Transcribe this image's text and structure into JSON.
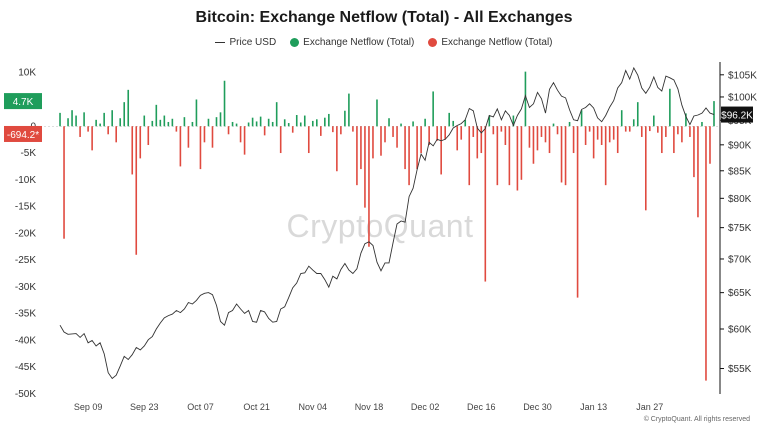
{
  "title": "Bitcoin: Exchange Netflow (Total) - All Exchanges",
  "legend": [
    {
      "label": "Price USD",
      "kind": "line",
      "color": "#333333"
    },
    {
      "label": "Exchange Netflow (Total)",
      "kind": "dot",
      "color": "#1f9d5b"
    },
    {
      "label": "Exchange Netflow (Total)",
      "kind": "dot",
      "color": "#e04a3f"
    }
  ],
  "watermark": "CryptoQuant",
  "copyright": "© CryptoQuant. All rights reserved",
  "colors": {
    "inflow_negative": "#e04a3f",
    "outflow_positive": "#1f9d5b",
    "price": "#333333"
  },
  "chart_data": {
    "type": "bar+line",
    "title": "Bitcoin: Exchange Netflow (Total) - All Exchanges",
    "left_axis": {
      "ylim": [
        -50000,
        12000
      ],
      "ticks": [
        10000,
        5000,
        0,
        -5000,
        -10000,
        -15000,
        -20000,
        -25000,
        -30000,
        -35000,
        -40000,
        -45000,
        -50000
      ],
      "tick_labels": [
        "10K",
        "5K",
        "0",
        "-5K",
        "-10K",
        "-15K",
        "-20K",
        "-25K",
        "-30K",
        "-35K",
        "-40K",
        "-45K",
        "-50K"
      ]
    },
    "right_axis": {
      "scale": "log",
      "ylim": [
        52000,
        108000
      ],
      "ticks": [
        105000,
        100000,
        95000,
        90000,
        85000,
        80000,
        75000,
        70000,
        65000,
        60000,
        55000
      ],
      "tick_labels": [
        "$105K",
        "$100K",
        "$95K",
        "$90K",
        "$85K",
        "$80K",
        "$75K",
        "$70K",
        "$65K",
        "$60K",
        "$55K"
      ]
    },
    "x_ticks": [
      "Sep 09",
      "Sep 23",
      "Oct 07",
      "Oct 21",
      "Nov 04",
      "Nov 18",
      "Dec 02",
      "Dec 16",
      "Dec 30",
      "Jan 13",
      "Jan 27"
    ],
    "x_tick_days": [
      9,
      23,
      37,
      51,
      65,
      79,
      93,
      107,
      121,
      135,
      149
    ],
    "x_range_days": [
      0,
      165
    ],
    "current_values": {
      "netflow_positive": "4.7K",
      "netflow_negative": "-694.2*",
      "price": "$96.2K"
    },
    "netflow": [
      [
        2,
        2500
      ],
      [
        3,
        -21000
      ],
      [
        4,
        1500
      ],
      [
        5,
        3000
      ],
      [
        6,
        2000
      ],
      [
        7,
        -2000
      ],
      [
        8,
        2600
      ],
      [
        9,
        -1000
      ],
      [
        10,
        -4500
      ],
      [
        11,
        1200
      ],
      [
        12,
        500
      ],
      [
        13,
        2500
      ],
      [
        14,
        -1500
      ],
      [
        15,
        3000
      ],
      [
        16,
        -3000
      ],
      [
        17,
        1500
      ],
      [
        18,
        4500
      ],
      [
        19,
        6800
      ],
      [
        20,
        -9000
      ],
      [
        21,
        -24000
      ],
      [
        22,
        -6000
      ],
      [
        23,
        2000
      ],
      [
        24,
        -3500
      ],
      [
        25,
        1000
      ],
      [
        26,
        4000
      ],
      [
        27,
        1200
      ],
      [
        28,
        2000
      ],
      [
        29,
        800
      ],
      [
        30,
        1400
      ],
      [
        31,
        -1000
      ],
      [
        32,
        -7500
      ],
      [
        33,
        1700
      ],
      [
        34,
        -4000
      ],
      [
        35,
        800
      ],
      [
        36,
        5000
      ],
      [
        37,
        -8000
      ],
      [
        38,
        -3000
      ],
      [
        39,
        1400
      ],
      [
        40,
        -4000
      ],
      [
        41,
        1700
      ],
      [
        42,
        2600
      ],
      [
        43,
        8500
      ],
      [
        44,
        -1500
      ],
      [
        45,
        800
      ],
      [
        46,
        500
      ],
      [
        47,
        -3000
      ],
      [
        48,
        -5300
      ],
      [
        49,
        700
      ],
      [
        50,
        1600
      ],
      [
        51,
        900
      ],
      [
        52,
        1800
      ],
      [
        53,
        -1700
      ],
      [
        54,
        1400
      ],
      [
        55,
        800
      ],
      [
        56,
        4500
      ],
      [
        57,
        -5000
      ],
      [
        58,
        1300
      ],
      [
        59,
        600
      ],
      [
        60,
        -1200
      ],
      [
        61,
        2100
      ],
      [
        62,
        700
      ],
      [
        63,
        2000
      ],
      [
        64,
        -5000
      ],
      [
        65,
        1000
      ],
      [
        66,
        1300
      ],
      [
        67,
        -1800
      ],
      [
        68,
        1600
      ],
      [
        69,
        2300
      ],
      [
        70,
        -1100
      ],
      [
        71,
        -8400
      ],
      [
        72,
        -1500
      ],
      [
        73,
        2900
      ],
      [
        74,
        6100
      ],
      [
        75,
        -1000
      ],
      [
        76,
        -11000
      ],
      [
        77,
        -8000
      ],
      [
        78,
        -15200
      ],
      [
        79,
        -22500
      ],
      [
        80,
        -6000
      ],
      [
        81,
        5000
      ],
      [
        82,
        -5500
      ],
      [
        83,
        -3000
      ],
      [
        84,
        1500
      ],
      [
        85,
        -2000
      ],
      [
        86,
        -4000
      ],
      [
        87,
        500
      ],
      [
        88,
        -8000
      ],
      [
        89,
        -11000
      ],
      [
        90,
        900
      ],
      [
        91,
        -8000
      ],
      [
        92,
        -5000
      ],
      [
        93,
        1400
      ],
      [
        94,
        -3500
      ],
      [
        95,
        6500
      ],
      [
        96,
        -2700
      ],
      [
        97,
        -9000
      ],
      [
        98,
        -2500
      ],
      [
        99,
        2500
      ],
      [
        100,
        1000
      ],
      [
        101,
        -4500
      ],
      [
        102,
        -2500
      ],
      [
        103,
        1200
      ],
      [
        104,
        -11000
      ],
      [
        105,
        -2000
      ],
      [
        106,
        -6000
      ],
      [
        107,
        -5000
      ],
      [
        108,
        -29000
      ],
      [
        109,
        2000
      ],
      [
        110,
        -1500
      ],
      [
        111,
        -11000
      ],
      [
        112,
        -1000
      ],
      [
        113,
        -3500
      ],
      [
        114,
        -11000
      ],
      [
        115,
        2000
      ],
      [
        116,
        -12000
      ],
      [
        117,
        -10000
      ],
      [
        118,
        10200
      ],
      [
        119,
        -4000
      ],
      [
        120,
        -7000
      ],
      [
        121,
        -4500
      ],
      [
        122,
        -2000
      ],
      [
        123,
        -3000
      ],
      [
        124,
        -5000
      ],
      [
        125,
        500
      ],
      [
        126,
        -1500
      ],
      [
        127,
        -10500
      ],
      [
        128,
        -11000
      ],
      [
        129,
        800
      ],
      [
        130,
        -5000
      ],
      [
        131,
        -32000
      ],
      [
        132,
        3000
      ],
      [
        133,
        -3500
      ],
      [
        134,
        -1000
      ],
      [
        135,
        -6000
      ],
      [
        136,
        -2500
      ],
      [
        137,
        -3500
      ],
      [
        138,
        -11000
      ],
      [
        139,
        -3000
      ],
      [
        140,
        -2500
      ],
      [
        141,
        -5000
      ],
      [
        142,
        3000
      ],
      [
        143,
        -1000
      ],
      [
        144,
        -1000
      ],
      [
        145,
        1300
      ],
      [
        146,
        4500
      ],
      [
        147,
        -2000
      ],
      [
        148,
        -15700
      ],
      [
        149,
        -900
      ],
      [
        150,
        2000
      ],
      [
        151,
        -1200
      ],
      [
        152,
        -5000
      ],
      [
        153,
        -2000
      ],
      [
        154,
        7000
      ],
      [
        155,
        -5000
      ],
      [
        156,
        -1500
      ],
      [
        157,
        -3000
      ],
      [
        158,
        2400
      ],
      [
        159,
        -2000
      ],
      [
        160,
        -9500
      ],
      [
        161,
        -17000
      ],
      [
        162,
        800
      ],
      [
        163,
        -47500
      ],
      [
        164,
        -7000
      ],
      [
        165,
        4700
      ]
    ],
    "price": [
      [
        2,
        60500
      ],
      [
        3,
        59600
      ],
      [
        4,
        59300
      ],
      [
        6,
        59400
      ],
      [
        7,
        58900
      ],
      [
        8,
        59400
      ],
      [
        9,
        58200
      ],
      [
        10,
        58500
      ],
      [
        11,
        57800
      ],
      [
        12,
        58200
      ],
      [
        13,
        56800
      ],
      [
        14,
        54500
      ],
      [
        15,
        53800
      ],
      [
        16,
        54200
      ],
      [
        17,
        55300
      ],
      [
        18,
        56500
      ],
      [
        19,
        56100
      ],
      [
        20,
        56700
      ],
      [
        21,
        57600
      ],
      [
        22,
        57300
      ],
      [
        23,
        57800
      ],
      [
        24,
        58600
      ],
      [
        25,
        59000
      ],
      [
        26,
        60000
      ],
      [
        27,
        60800
      ],
      [
        28,
        61500
      ],
      [
        29,
        61800
      ],
      [
        30,
        62000
      ],
      [
        31,
        62500
      ],
      [
        32,
        62200
      ],
      [
        33,
        62700
      ],
      [
        34,
        63600
      ],
      [
        35,
        63400
      ],
      [
        36,
        63900
      ],
      [
        37,
        64600
      ],
      [
        38,
        64900
      ],
      [
        39,
        65000
      ],
      [
        40,
        64700
      ],
      [
        41,
        63200
      ],
      [
        42,
        61000
      ],
      [
        43,
        60500
      ],
      [
        44,
        62200
      ],
      [
        45,
        62500
      ],
      [
        46,
        63400
      ],
      [
        47,
        62700
      ],
      [
        48,
        62100
      ],
      [
        49,
        62500
      ],
      [
        50,
        61000
      ],
      [
        51,
        60900
      ],
      [
        52,
        62500
      ],
      [
        53,
        62300
      ],
      [
        54,
        61400
      ],
      [
        55,
        60900
      ],
      [
        56,
        61000
      ],
      [
        57,
        62700
      ],
      [
        58,
        63000
      ],
      [
        59,
        64300
      ],
      [
        60,
        65700
      ],
      [
        61,
        66400
      ],
      [
        62,
        67800
      ],
      [
        63,
        67900
      ],
      [
        64,
        68900
      ],
      [
        65,
        68300
      ],
      [
        66,
        67800
      ],
      [
        67,
        67800
      ],
      [
        68,
        66900
      ],
      [
        69,
        65800
      ],
      [
        70,
        67400
      ],
      [
        71,
        67000
      ],
      [
        72,
        68400
      ],
      [
        73,
        69300
      ],
      [
        74,
        68300
      ],
      [
        75,
        67800
      ],
      [
        76,
        68500
      ],
      [
        77,
        70900
      ],
      [
        78,
        72400
      ],
      [
        79,
        72700
      ],
      [
        80,
        72100
      ],
      [
        81,
        69500
      ],
      [
        82,
        68200
      ],
      [
        83,
        69400
      ],
      [
        84,
        69400
      ],
      [
        85,
        72500
      ],
      [
        86,
        75600
      ],
      [
        87,
        76100
      ],
      [
        88,
        75900
      ],
      [
        89,
        80300
      ],
      [
        90,
        81800
      ],
      [
        91,
        85200
      ],
      [
        92,
        88200
      ],
      [
        93,
        87000
      ],
      [
        94,
        90500
      ],
      [
        95,
        89800
      ],
      [
        96,
        91100
      ],
      [
        97,
        90800
      ],
      [
        98,
        91100
      ],
      [
        99,
        92000
      ],
      [
        100,
        93400
      ],
      [
        101,
        93900
      ],
      [
        102,
        94300
      ],
      [
        103,
        95100
      ],
      [
        104,
        97500
      ],
      [
        105,
        97000
      ],
      [
        106,
        93400
      ],
      [
        107,
        92400
      ],
      [
        108,
        93300
      ],
      [
        109,
        96000
      ],
      [
        110,
        95700
      ],
      [
        111,
        97400
      ],
      [
        112,
        95100
      ],
      [
        113,
        97000
      ],
      [
        114,
        96000
      ],
      [
        115,
        93900
      ],
      [
        116,
        96000
      ],
      [
        117,
        97400
      ],
      [
        118,
        100300
      ],
      [
        119,
        97700
      ],
      [
        120,
        98500
      ],
      [
        121,
        101000
      ],
      [
        122,
        99600
      ],
      [
        123,
        96500
      ],
      [
        124,
        101700
      ],
      [
        125,
        103200
      ],
      [
        126,
        101500
      ],
      [
        127,
        100200
      ],
      [
        128,
        99800
      ],
      [
        129,
        97200
      ],
      [
        130,
        95100
      ],
      [
        131,
        94900
      ],
      [
        132,
        97300
      ],
      [
        133,
        97700
      ],
      [
        134,
        98500
      ],
      [
        135,
        97600
      ],
      [
        136,
        95500
      ],
      [
        137,
        94700
      ],
      [
        138,
        96000
      ],
      [
        139,
        97800
      ],
      [
        140,
        99200
      ],
      [
        141,
        102000
      ],
      [
        142,
        103200
      ],
      [
        143,
        106000
      ],
      [
        144,
        104000
      ],
      [
        145,
        106600
      ],
      [
        146,
        104900
      ],
      [
        147,
        102000
      ],
      [
        148,
        100800
      ],
      [
        149,
        102200
      ],
      [
        150,
        104500
      ],
      [
        151,
        102100
      ],
      [
        152,
        101300
      ],
      [
        153,
        104700
      ],
      [
        154,
        104300
      ],
      [
        155,
        103800
      ],
      [
        156,
        101800
      ],
      [
        157,
        98200
      ],
      [
        158,
        95800
      ],
      [
        159,
        94100
      ],
      [
        160,
        95900
      ],
      [
        161,
        96100
      ],
      [
        162,
        96500
      ],
      [
        163,
        97600
      ],
      [
        164,
        96500
      ],
      [
        165,
        96200
      ]
    ]
  }
}
